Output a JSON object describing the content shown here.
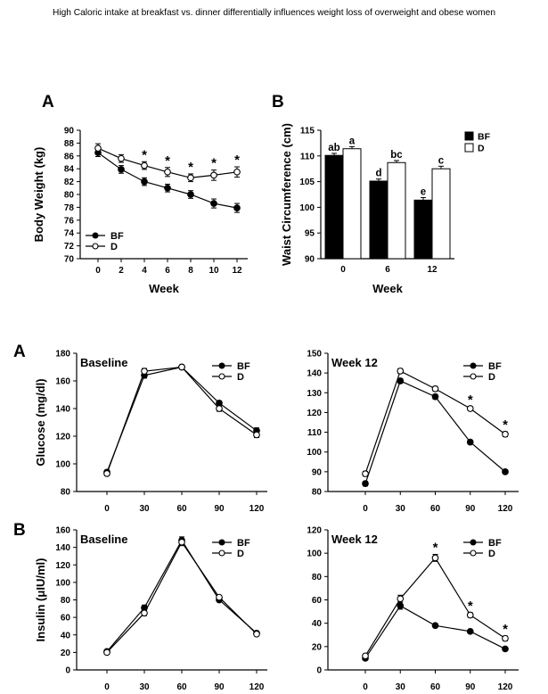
{
  "title": "High Caloric intake at breakfast vs. dinner differentially influences weight loss of overweight and obese women",
  "panel_labels": [
    "A",
    "B",
    "A",
    "B"
  ],
  "chart_data": [
    {
      "id": "body-weight",
      "type": "line",
      "ylabel": "Body Weight (kg)",
      "xlabel": "Week",
      "ylim": [
        70,
        90
      ],
      "yticks": [
        70,
        72,
        74,
        76,
        78,
        80,
        82,
        84,
        86,
        88,
        90
      ],
      "x": [
        0,
        2,
        4,
        6,
        8,
        10,
        12
      ],
      "xticklabels": [
        "0",
        "2",
        "4",
        "6",
        "8",
        "10",
        "12"
      ],
      "legend": [
        "BF",
        "D"
      ],
      "series": [
        {
          "name": "BF",
          "marker": "filled",
          "values": [
            86.5,
            83.9,
            82.0,
            81.0,
            80.0,
            78.6,
            77.9
          ],
          "err": [
            0.6,
            0.6,
            0.6,
            0.6,
            0.6,
            0.7,
            0.7
          ]
        },
        {
          "name": "D",
          "marker": "open",
          "values": [
            87.2,
            85.6,
            84.5,
            83.5,
            82.6,
            83.0,
            83.5
          ],
          "err": [
            0.7,
            0.6,
            0.6,
            0.7,
            0.6,
            0.8,
            0.8
          ]
        }
      ],
      "annotations": [
        {
          "x": 4,
          "text": "*"
        },
        {
          "x": 6,
          "text": "*"
        },
        {
          "x": 8,
          "text": "*"
        },
        {
          "x": 10,
          "text": "*"
        },
        {
          "x": 12,
          "text": "*"
        }
      ]
    },
    {
      "id": "waist-circumference",
      "type": "bar",
      "ylabel": "Waist Circumference (cm)",
      "xlabel": "Week",
      "ylim": [
        90,
        115
      ],
      "yticks": [
        90,
        95,
        100,
        105,
        110,
        115
      ],
      "categories": [
        "0",
        "6",
        "12"
      ],
      "legend": [
        "BF",
        "D"
      ],
      "series": [
        {
          "name": "BF",
          "fill": "#000000",
          "values": [
            110.1,
            105.1,
            101.4
          ],
          "err": [
            0.4,
            0.4,
            0.5
          ],
          "labels": [
            "ab",
            "d",
            "e"
          ]
        },
        {
          "name": "D",
          "fill": "#ffffff",
          "values": [
            111.4,
            108.7,
            107.5
          ],
          "err": [
            0.4,
            0.4,
            0.5
          ],
          "labels": [
            "a",
            "bc",
            "c"
          ]
        }
      ]
    },
    {
      "id": "glucose-baseline",
      "type": "line",
      "inner_title": "Baseline",
      "ylabel": "Glucose (mg/dl)",
      "ylim": [
        80,
        180
      ],
      "yticks": [
        80,
        100,
        120,
        140,
        160,
        180
      ],
      "x": [
        0,
        30,
        60,
        90,
        120
      ],
      "xticklabels": [
        "0",
        "30",
        "60",
        "90",
        "120"
      ],
      "legend": [
        "BF",
        "D"
      ],
      "series": [
        {
          "name": "BF",
          "marker": "filled",
          "values": [
            94,
            164,
            170,
            144,
            124
          ],
          "err": [
            1.5,
            2,
            1.5,
            1.5,
            2
          ]
        },
        {
          "name": "D",
          "marker": "open",
          "values": [
            93,
            167,
            170,
            140,
            121
          ],
          "err": [
            1.5,
            2,
            1.5,
            2,
            2
          ]
        }
      ],
      "annotations": []
    },
    {
      "id": "glucose-week12",
      "type": "line",
      "inner_title": "Week 12",
      "ylabel": "",
      "ylim": [
        80,
        150
      ],
      "yticks": [
        80,
        90,
        100,
        110,
        120,
        130,
        140,
        150
      ],
      "x": [
        0,
        30,
        60,
        90,
        120
      ],
      "xticklabels": [
        "0",
        "30",
        "60",
        "90",
        "120"
      ],
      "legend": [
        "BF",
        "D"
      ],
      "series": [
        {
          "name": "BF",
          "marker": "filled",
          "values": [
            84,
            136,
            128,
            105,
            90
          ],
          "err": [
            1.2,
            1.2,
            1.2,
            1,
            1
          ]
        },
        {
          "name": "D",
          "marker": "open",
          "values": [
            89,
            141,
            132,
            122,
            109
          ],
          "err": [
            1.2,
            1.2,
            1.2,
            1,
            1.2
          ]
        }
      ],
      "annotations": [
        {
          "x": 90,
          "text": "*"
        },
        {
          "x": 120,
          "text": "*"
        }
      ]
    },
    {
      "id": "insulin-baseline",
      "type": "line",
      "inner_title": "Baseline",
      "ylabel": "Insulin (μIU/ml)",
      "ylim": [
        0,
        160
      ],
      "yticks": [
        0,
        20,
        40,
        60,
        80,
        100,
        120,
        140,
        160
      ],
      "x": [
        0,
        30,
        60,
        90,
        120
      ],
      "xticklabels": [
        "0",
        "30",
        "60",
        "90",
        "120"
      ],
      "legend": [
        "BF",
        "D"
      ],
      "series": [
        {
          "name": "BF",
          "marker": "filled",
          "values": [
            21,
            71,
            148,
            80,
            42
          ],
          "err": [
            1.5,
            3,
            4,
            2,
            2
          ]
        },
        {
          "name": "D",
          "marker": "open",
          "values": [
            20,
            65,
            146,
            83,
            41
          ],
          "err": [
            1.5,
            3,
            4,
            2,
            2
          ]
        }
      ],
      "annotations": []
    },
    {
      "id": "insulin-week12",
      "type": "line",
      "inner_title": "Week 12",
      "ylabel": "",
      "ylim": [
        0,
        120
      ],
      "yticks": [
        0,
        20,
        40,
        60,
        80,
        100,
        120
      ],
      "x": [
        0,
        30,
        60,
        90,
        120
      ],
      "xticklabels": [
        "0",
        "30",
        "60",
        "90",
        "120"
      ],
      "legend": [
        "BF",
        "D"
      ],
      "series": [
        {
          "name": "BF",
          "marker": "filled",
          "values": [
            10,
            55,
            38,
            33,
            18
          ],
          "err": [
            1.5,
            3,
            1.5,
            1,
            1
          ]
        },
        {
          "name": "D",
          "marker": "open",
          "values": [
            12,
            61,
            96,
            47,
            27
          ],
          "err": [
            1.5,
            3,
            3,
            2,
            2
          ]
        }
      ],
      "annotations": [
        {
          "x": 60,
          "text": "*"
        },
        {
          "x": 90,
          "text": "*"
        },
        {
          "x": 120,
          "text": "*"
        }
      ]
    }
  ]
}
